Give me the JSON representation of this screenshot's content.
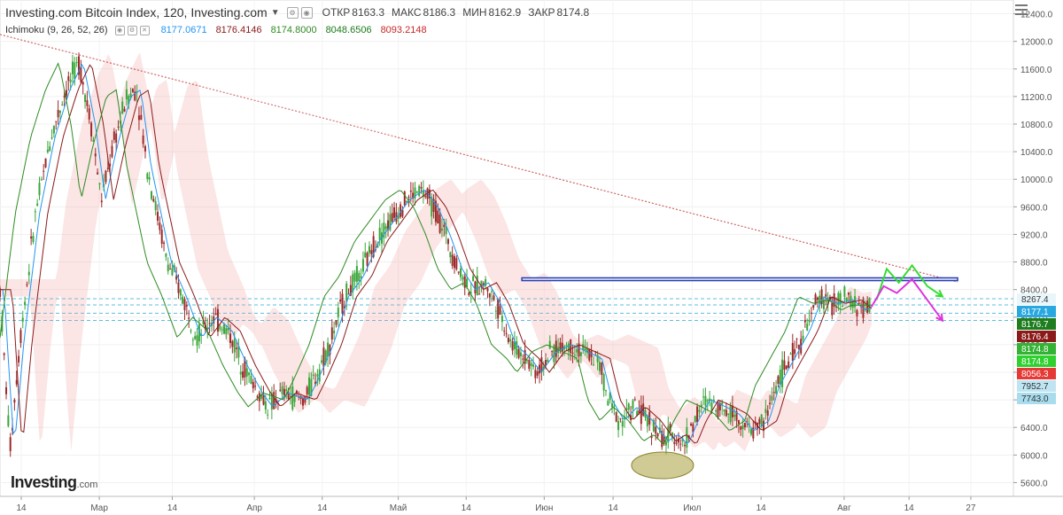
{
  "header": {
    "title": "Investing.com Bitcoin Index, 120, Investing.com",
    "open_label": "ОТКР",
    "open": "8163.3",
    "high_label": "МАКС",
    "high": "8186.3",
    "low_label": "МИН",
    "low": "8162.9",
    "close_label": "ЗАКР",
    "close": "8174.8"
  },
  "indicator": {
    "name": "Ichimoku (9, 26, 52, 26)",
    "values": [
      "8177.0671",
      "8176.4146",
      "8174.8000",
      "8048.6506",
      "8093.2148"
    ],
    "colors": [
      "#2196f3",
      "#8b1a1a",
      "#2e8b22",
      "#1b7a1b",
      "#c62828"
    ]
  },
  "logo": {
    "text": "Investing",
    "suffix": ".com"
  },
  "chart_data": {
    "type": "line",
    "title": "Investing.com Bitcoin Index, 120, Investing.com",
    "xlabel": "",
    "ylabel": "",
    "ylim": [
      5400,
      12600
    ],
    "grid": true,
    "y_ticks": [
      "12400.0",
      "12000.0",
      "11600.0",
      "11200.0",
      "10800.0",
      "10400.0",
      "10000.0",
      "9600.0",
      "9200.0",
      "8800.0",
      "8400.0",
      "8000.0",
      "7600.0",
      "7200.0",
      "6800.0",
      "6400.0",
      "6000.0",
      "5600.0"
    ],
    "x_ticks": [
      {
        "label": "14",
        "t": 0.021
      },
      {
        "label": "Мар",
        "t": 0.098
      },
      {
        "label": "14",
        "t": 0.17
      },
      {
        "label": "Апр",
        "t": 0.251
      },
      {
        "label": "14",
        "t": 0.318
      },
      {
        "label": "Май",
        "t": 0.393
      },
      {
        "label": "14",
        "t": 0.46
      },
      {
        "label": "Июн",
        "t": 0.537
      },
      {
        "label": "14",
        "t": 0.605
      },
      {
        "label": "Июл",
        "t": 0.683
      },
      {
        "label": "14",
        "t": 0.751
      },
      {
        "label": "Авг",
        "t": 0.833
      },
      {
        "label": "14",
        "t": 0.897
      },
      {
        "label": "27",
        "t": 0.958
      }
    ],
    "price_path": [
      [
        0.0,
        8400
      ],
      [
        0.005,
        7200
      ],
      [
        0.01,
        6100
      ],
      [
        0.02,
        7700
      ],
      [
        0.035,
        9500
      ],
      [
        0.05,
        10600
      ],
      [
        0.065,
        11300
      ],
      [
        0.078,
        11700
      ],
      [
        0.09,
        10800
      ],
      [
        0.1,
        9700
      ],
      [
        0.112,
        10500
      ],
      [
        0.125,
        11200
      ],
      [
        0.135,
        11300
      ],
      [
        0.145,
        10200
      ],
      [
        0.155,
        9500
      ],
      [
        0.165,
        8800
      ],
      [
        0.18,
        8300
      ],
      [
        0.195,
        7700
      ],
      [
        0.21,
        8000
      ],
      [
        0.225,
        7800
      ],
      [
        0.24,
        7300
      ],
      [
        0.255,
        6900
      ],
      [
        0.265,
        6700
      ],
      [
        0.28,
        6900
      ],
      [
        0.3,
        6800
      ],
      [
        0.31,
        7100
      ],
      [
        0.325,
        7600
      ],
      [
        0.34,
        8300
      ],
      [
        0.355,
        8600
      ],
      [
        0.37,
        9100
      ],
      [
        0.385,
        9400
      ],
      [
        0.4,
        9700
      ],
      [
        0.415,
        9850
      ],
      [
        0.428,
        9600
      ],
      [
        0.44,
        9200
      ],
      [
        0.452,
        8700
      ],
      [
        0.465,
        8400
      ],
      [
        0.478,
        8500
      ],
      [
        0.49,
        8200
      ],
      [
        0.505,
        7600
      ],
      [
        0.52,
        7400
      ],
      [
        0.53,
        7200
      ],
      [
        0.545,
        7500
      ],
      [
        0.56,
        7600
      ],
      [
        0.575,
        7500
      ],
      [
        0.59,
        7400
      ],
      [
        0.6,
        6800
      ],
      [
        0.612,
        6500
      ],
      [
        0.625,
        6700
      ],
      [
        0.64,
        6500
      ],
      [
        0.655,
        6200
      ],
      [
        0.665,
        6300
      ],
      [
        0.675,
        6150
      ],
      [
        0.685,
        6500
      ],
      [
        0.697,
        6800
      ],
      [
        0.712,
        6700
      ],
      [
        0.725,
        6600
      ],
      [
        0.74,
        6350
      ],
      [
        0.755,
        6500
      ],
      [
        0.765,
        7000
      ],
      [
        0.78,
        7400
      ],
      [
        0.795,
        7800
      ],
      [
        0.808,
        8300
      ],
      [
        0.822,
        8200
      ],
      [
        0.838,
        8250
      ],
      [
        0.85,
        8100
      ],
      [
        0.86,
        8175
      ]
    ],
    "trend_line": {
      "start": [
        0.0,
        12100
      ],
      "end": [
        1.0,
        8300
      ]
    },
    "resistance_band": {
      "y": [
        8530,
        8570
      ],
      "t_range": [
        0.515,
        1.0
      ]
    },
    "levels": [
      8267.4,
      8177.1,
      8056.3,
      7952.7
    ],
    "scenario_up": [
      [
        0.865,
        8250
      ],
      [
        0.875,
        8700
      ],
      [
        0.887,
        8500
      ],
      [
        0.9,
        8750
      ],
      [
        0.915,
        8450
      ],
      [
        0.93,
        8300
      ]
    ],
    "scenario_down": [
      [
        0.86,
        8150
      ],
      [
        0.872,
        8450
      ],
      [
        0.885,
        8350
      ],
      [
        0.9,
        8550
      ],
      [
        0.915,
        8250
      ],
      [
        0.93,
        7950
      ]
    ],
    "support_ellipse": {
      "center": [
        0.68,
        5850
      ],
      "label": ""
    },
    "price_labels": [
      {
        "value": "8267.4",
        "y": 8267.4,
        "bg": "#e8f6fb",
        "fg": "#333"
      },
      {
        "value": "8177.1",
        "y": 8177.1,
        "bg": "#29a8e0",
        "fg": "#ffffff"
      },
      {
        "value": "8176.7",
        "y": 8176.7,
        "bg": "#1e7d1e",
        "fg": "#ffffff"
      },
      {
        "value": "8176.4",
        "y": 8176.4,
        "bg": "#8b1a1a",
        "fg": "#ffffff"
      },
      {
        "value": "8174.8",
        "y": 8174.8,
        "bg": "#33b233",
        "fg": "#ffffff"
      },
      {
        "value": "8174.8",
        "y": 8174.8,
        "bg": "#2fd12f",
        "fg": "#ffffff"
      },
      {
        "value": "8056.3",
        "y": 8056.3,
        "bg": "#e53935",
        "fg": "#ffffff"
      },
      {
        "value": "7952.7",
        "y": 7952.7,
        "bg": "#bfe5f2",
        "fg": "#333"
      },
      {
        "value": "7743.0",
        "y": 7743.0,
        "bg": "#a9dced",
        "fg": "#333"
      }
    ]
  }
}
